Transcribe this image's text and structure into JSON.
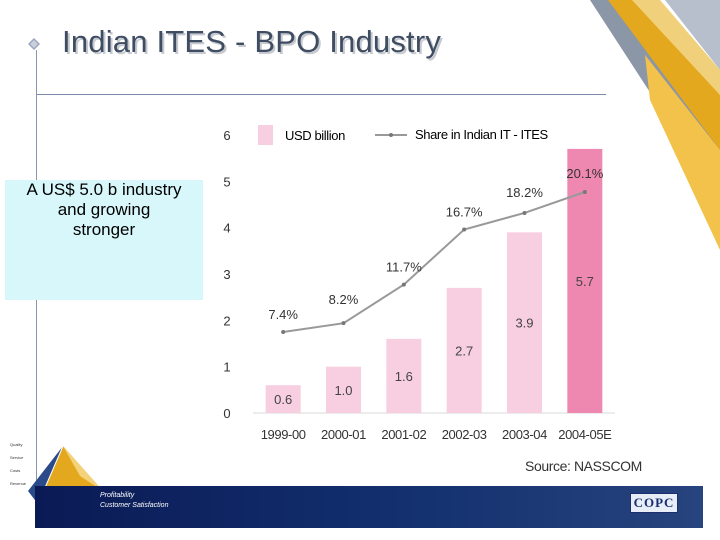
{
  "slide": {
    "title": "Indian ITES - BPO Industry",
    "callout_lines": [
      "A US$ 5.0 b industry",
      "and growing",
      "stronger"
    ],
    "source": "Source: NASSCOM",
    "footer_items": [
      "Profitability",
      "Customer Satisfaction"
    ],
    "logo_items": [
      "Quality",
      "Service",
      "Costs",
      "Revenue"
    ],
    "brand": "COPC"
  },
  "colors": {
    "title": "#3f4d63",
    "bar_light": "#f7cfe0",
    "bar_highlight": "#ee88b0",
    "line": "#999999",
    "callout_bg": "#d8f7fb",
    "footer": "#0a1a55",
    "accent_gold": "#e3a81e"
  },
  "chart_data": {
    "type": "bar",
    "categories": [
      "1999-00",
      "2000-01",
      "2001-02",
      "2002-03",
      "2003-04",
      "2004-05E"
    ],
    "series": [
      {
        "name": "USD billion",
        "values": [
          0.6,
          1.0,
          1.6,
          2.7,
          3.9,
          5.7
        ],
        "labels": [
          "0.6",
          "1.0",
          "1.6",
          "2.7",
          "3.9",
          "5.7"
        ]
      },
      {
        "name": "Share in Indian IT - ITES",
        "type": "line",
        "values": [
          7.4,
          8.2,
          11.7,
          16.7,
          18.2,
          20.1
        ],
        "labels": [
          "7.4%",
          "8.2%",
          "11.7%",
          "16.7%",
          "18.2%",
          "20.1%"
        ]
      }
    ],
    "y_ticks": [
      "0",
      "1",
      "2",
      "3",
      "4",
      "5",
      "6"
    ],
    "ylim": [
      0,
      6
    ],
    "title": "",
    "xlabel": "",
    "ylabel": "",
    "legend": "top"
  }
}
